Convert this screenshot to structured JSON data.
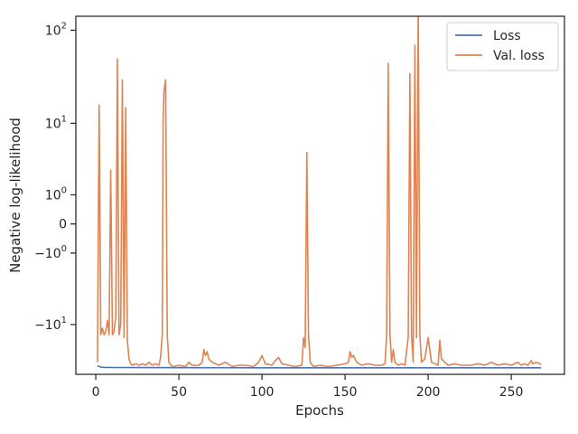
{
  "chart_data": {
    "type": "line",
    "title": "",
    "xlabel": "Epochs",
    "ylabel": "Negative log-likelihood",
    "yscale": "symlog",
    "xlim": [
      -12,
      282
    ],
    "ylim": [
      -35,
      140
    ],
    "grid": false,
    "legend_position": "top-right",
    "x_ticks": [
      {
        "value": 0,
        "label": "0"
      },
      {
        "value": 50,
        "label": "50"
      },
      {
        "value": 100,
        "label": "100"
      },
      {
        "value": 150,
        "label": "150"
      },
      {
        "value": 200,
        "label": "200"
      },
      {
        "value": 250,
        "label": "250"
      }
    ],
    "y_ticks": [
      {
        "value": 100,
        "base": "10",
        "exp": "2"
      },
      {
        "value": 10,
        "base": "10",
        "exp": "1"
      },
      {
        "value": 1,
        "base": "10",
        "exp": "0"
      },
      {
        "value": 0,
        "base": "0",
        "exp": ""
      },
      {
        "value": -1,
        "base": "−10",
        "exp": "0"
      },
      {
        "value": -10,
        "base": "−10",
        "exp": "1"
      }
    ],
    "series": [
      {
        "name": "Loss",
        "color": "#4c72b0",
        "points": [
          [
            1,
            -28.5
          ],
          [
            3,
            -29.3
          ],
          [
            5,
            -29.5
          ],
          [
            10,
            -29.6
          ],
          [
            30,
            -29.7
          ],
          [
            60,
            -29.75
          ],
          [
            100,
            -29.8
          ],
          [
            150,
            -29.8
          ],
          [
            200,
            -29.8
          ],
          [
            268,
            -29.85
          ]
        ]
      },
      {
        "name": "Val. loss",
        "color": "#dd8452",
        "points": [
          [
            1,
            -26
          ],
          [
            2,
            16
          ],
          [
            3,
            -13
          ],
          [
            4,
            -11
          ],
          [
            5,
            -13
          ],
          [
            6,
            -12
          ],
          [
            7,
            -9
          ],
          [
            8,
            -13
          ],
          [
            9,
            2.6
          ],
          [
            10,
            -13
          ],
          [
            11,
            -12
          ],
          [
            12,
            -8
          ],
          [
            13,
            50
          ],
          [
            14,
            -13
          ],
          [
            15,
            -10
          ],
          [
            16,
            30
          ],
          [
            17,
            -14
          ],
          [
            18,
            15
          ],
          [
            19,
            -15
          ],
          [
            20,
            -24
          ],
          [
            21,
            -27
          ],
          [
            22,
            -28
          ],
          [
            24,
            -27
          ],
          [
            26,
            -28
          ],
          [
            28,
            -27
          ],
          [
            30,
            -28
          ],
          [
            32,
            -26
          ],
          [
            34,
            -28
          ],
          [
            36,
            -27
          ],
          [
            38,
            -28
          ],
          [
            39,
            -23
          ],
          [
            40,
            -13
          ],
          [
            40.5,
            10
          ],
          [
            41,
            22
          ],
          [
            42,
            30
          ],
          [
            43,
            -13
          ],
          [
            44,
            -26
          ],
          [
            46,
            -29
          ],
          [
            50,
            -28
          ],
          [
            54,
            -29
          ],
          [
            56,
            -26
          ],
          [
            58,
            -28
          ],
          [
            62,
            -28
          ],
          [
            64,
            -26
          ],
          [
            65,
            -19
          ],
          [
            66,
            -22
          ],
          [
            67,
            -20
          ],
          [
            68,
            -24
          ],
          [
            70,
            -26
          ],
          [
            72,
            -27
          ],
          [
            74,
            -28
          ],
          [
            78,
            -26
          ],
          [
            82,
            -29
          ],
          [
            86,
            -28
          ],
          [
            90,
            -28
          ],
          [
            95,
            -29
          ],
          [
            98,
            -26
          ],
          [
            100,
            -22
          ],
          [
            102,
            -27
          ],
          [
            106,
            -28
          ],
          [
            108,
            -25
          ],
          [
            110,
            -23
          ],
          [
            112,
            -27
          ],
          [
            116,
            -28
          ],
          [
            120,
            -29
          ],
          [
            124,
            -28
          ],
          [
            125,
            -14
          ],
          [
            126,
            -18
          ],
          [
            127,
            4.5
          ],
          [
            128,
            -13
          ],
          [
            129,
            -26
          ],
          [
            131,
            -29
          ],
          [
            135,
            -28
          ],
          [
            140,
            -29
          ],
          [
            145,
            -28
          ],
          [
            150,
            -27
          ],
          [
            152,
            -26
          ],
          [
            153,
            -20
          ],
          [
            154,
            -23
          ],
          [
            155,
            -22
          ],
          [
            157,
            -26
          ],
          [
            160,
            -28
          ],
          [
            164,
            -27
          ],
          [
            168,
            -28
          ],
          [
            172,
            -28
          ],
          [
            174,
            -27
          ],
          [
            175,
            -13
          ],
          [
            176,
            45
          ],
          [
            177,
            -13
          ],
          [
            178,
            -26
          ],
          [
            179,
            -19
          ],
          [
            180,
            -26
          ],
          [
            182,
            -28
          ],
          [
            184,
            -27
          ],
          [
            186,
            -28
          ],
          [
            188,
            -14
          ],
          [
            189,
            35
          ],
          [
            190,
            -13
          ],
          [
            191,
            -26
          ],
          [
            192,
            70
          ],
          [
            193,
            -14
          ],
          [
            194,
            200
          ],
          [
            195,
            -13
          ],
          [
            196,
            -26
          ],
          [
            198,
            -24
          ],
          [
            200,
            -14
          ],
          [
            202,
            -26
          ],
          [
            204,
            -27
          ],
          [
            206,
            -28
          ],
          [
            207,
            -15
          ],
          [
            208,
            -24
          ],
          [
            210,
            -26
          ],
          [
            212,
            -28
          ],
          [
            216,
            -27
          ],
          [
            220,
            -28
          ],
          [
            226,
            -28
          ],
          [
            230,
            -27
          ],
          [
            234,
            -28
          ],
          [
            238,
            -26
          ],
          [
            242,
            -28
          ],
          [
            246,
            -27
          ],
          [
            250,
            -28
          ],
          [
            254,
            -26
          ],
          [
            256,
            -28
          ],
          [
            258,
            -27
          ],
          [
            260,
            -28
          ],
          [
            262,
            -25
          ],
          [
            263,
            -27
          ],
          [
            265,
            -26
          ],
          [
            267,
            -27
          ],
          [
            268,
            -27.5
          ]
        ]
      }
    ]
  }
}
